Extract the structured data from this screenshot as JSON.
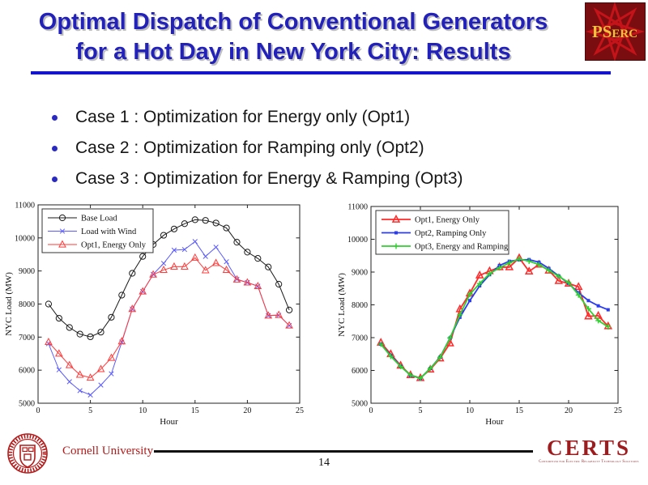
{
  "slide": {
    "title_line1": "Optimal Dispatch of Conventional Generators",
    "title_line2": "for a Hot Day in New York City: Results",
    "bullets": [
      "Case 1 : Optimization for Energy only (Opt1)",
      "Case 2 : Optimization for Ramping only (Opt2)",
      "Case 3 : Optimization for Energy & Ramping (Opt3)"
    ],
    "page_number": "14"
  },
  "logos": {
    "pserc": {
      "text_large": "PS",
      "text_small": "ERC",
      "bg": "#7a0d10",
      "star": "#c41319",
      "gold": "#f0c13a"
    },
    "cornell": {
      "label": "Cornell University",
      "color": "#b31b1b"
    },
    "certs": {
      "label": "CERTS",
      "sublabel": "Consortium for Electric Reliability Technology Solutions",
      "color": "#9e1b1e"
    }
  },
  "chart_data": [
    {
      "type": "line",
      "title": "",
      "xlabel": "Hour",
      "ylabel": "NYC Load (MW)",
      "xlim": [
        0,
        25
      ],
      "ylim": [
        5000,
        11000
      ],
      "xticks": [
        0,
        5,
        10,
        15,
        20,
        25
      ],
      "yticks": [
        5000,
        6000,
        7000,
        8000,
        9000,
        10000,
        11000
      ],
      "grid": false,
      "legend_position": "top-left",
      "x": [
        1,
        2,
        3,
        4,
        5,
        6,
        7,
        8,
        9,
        10,
        11,
        12,
        13,
        14,
        15,
        16,
        17,
        18,
        19,
        20,
        21,
        22,
        23,
        24
      ],
      "series": [
        {
          "name": "Base Load",
          "color": "#1a1a1a",
          "marker": "circle",
          "lw": 1,
          "values": [
            8000,
            7570,
            7290,
            7090,
            7010,
            7150,
            7600,
            8270,
            8930,
            9440,
            9800,
            10080,
            10270,
            10430,
            10550,
            10530,
            10450,
            10300,
            9870,
            9570,
            9380,
            9120,
            8600,
            7820
          ]
        },
        {
          "name": "Load with Wind",
          "color": "#5a5aff",
          "marker": "x",
          "lw": 1,
          "values": [
            6800,
            6010,
            5650,
            5380,
            5250,
            5550,
            5890,
            6850,
            7850,
            8380,
            8900,
            9230,
            9630,
            9650,
            9890,
            9440,
            9720,
            9280,
            8750,
            8650,
            8540,
            7650,
            7660,
            7350
          ]
        },
        {
          "name": "Opt1, Energy Only",
          "color": "#ff3b3b",
          "marker": "triangle",
          "lw": 1,
          "values": [
            6850,
            6500,
            6150,
            5860,
            5770,
            6030,
            6370,
            6870,
            7850,
            8380,
            8890,
            9030,
            9130,
            9130,
            9400,
            9020,
            9240,
            9030,
            8740,
            8650,
            8540,
            7650,
            7670,
            7350
          ]
        }
      ]
    },
    {
      "type": "line",
      "title": "",
      "xlabel": "Hour",
      "ylabel": "NYC Load (MW)",
      "xlim": [
        0,
        25
      ],
      "ylim": [
        5000,
        11000
      ],
      "xticks": [
        0,
        5,
        10,
        15,
        20,
        25
      ],
      "yticks": [
        5000,
        6000,
        7000,
        8000,
        9000,
        10000,
        11000
      ],
      "grid": false,
      "legend_position": "top-left",
      "x": [
        1,
        2,
        3,
        4,
        5,
        6,
        7,
        8,
        9,
        10,
        11,
        12,
        13,
        14,
        15,
        16,
        17,
        18,
        19,
        20,
        21,
        22,
        23,
        24
      ],
      "series": [
        {
          "name": "Opt1, Energy Only",
          "color": "#ff2a2a",
          "marker": "triangle",
          "lw": 1.8,
          "values": [
            6850,
            6500,
            6150,
            5860,
            5770,
            6030,
            6370,
            6830,
            7870,
            8350,
            8900,
            9030,
            9150,
            9150,
            9430,
            9020,
            9230,
            9050,
            8730,
            8650,
            8550,
            7650,
            7670,
            7350
          ]
        },
        {
          "name": "Opt2, Ramping Only",
          "color": "#2b3cee",
          "marker": "square",
          "lw": 1.8,
          "values": [
            6800,
            6460,
            6130,
            5850,
            5760,
            6060,
            6410,
            6990,
            7620,
            8130,
            8580,
            8920,
            9200,
            9330,
            9370,
            9380,
            9300,
            9110,
            8880,
            8650,
            8370,
            8130,
            7970,
            7850
          ]
        },
        {
          "name": "Opt3, Energy and Ramping",
          "color": "#2ed12e",
          "marker": "plus",
          "lw": 1.8,
          "values": [
            6800,
            6430,
            6120,
            5860,
            5760,
            6060,
            6400,
            6990,
            7700,
            8320,
            8650,
            8950,
            9130,
            9280,
            9400,
            9330,
            9230,
            9050,
            8870,
            8680,
            8300,
            7880,
            7520,
            7330
          ]
        }
      ]
    }
  ]
}
